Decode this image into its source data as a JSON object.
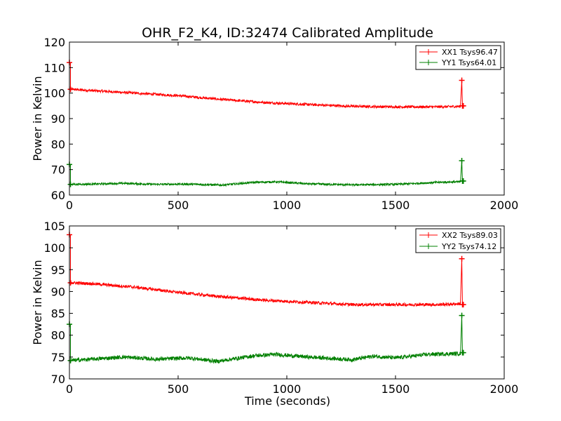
{
  "chart_data": [
    {
      "type": "line",
      "title": "OHR_F2_K4, ID:32474 Calibrated Amplitude",
      "xlabel": "",
      "ylabel": "Power in Kelvin",
      "xlim": [
        0,
        2000
      ],
      "ylim": [
        60,
        120
      ],
      "xticks": [
        0,
        500,
        1000,
        1500,
        2000
      ],
      "yticks": [
        60,
        70,
        80,
        90,
        100,
        110,
        120
      ],
      "grid": false,
      "legend": "top-right",
      "series": [
        {
          "name": "XX1 Tsys96.47",
          "color": "#ff0000",
          "noise": 0.5,
          "x": [
            0,
            5,
            6,
            100,
            300,
            500,
            700,
            900,
            1100,
            1300,
            1500,
            1700,
            1800,
            1805,
            1808,
            1812
          ],
          "y": [
            112,
            112,
            101.5,
            101,
            100,
            99,
            97.5,
            96.3,
            95.5,
            94.8,
            94.6,
            94.6,
            94.8,
            105,
            95,
            95
          ]
        },
        {
          "name": "YY1 Tsys64.01",
          "color": "#008000",
          "noise": 0.4,
          "x": [
            0,
            5,
            6,
            100,
            250,
            400,
            550,
            700,
            850,
            950,
            1100,
            1300,
            1500,
            1700,
            1800,
            1805,
            1808,
            1812
          ],
          "y": [
            72,
            72,
            64.2,
            64.3,
            64.6,
            64.2,
            64.3,
            63.9,
            65,
            65.2,
            64.4,
            64,
            64.2,
            65,
            65.2,
            73.5,
            65.5,
            65.5
          ]
        }
      ]
    },
    {
      "type": "line",
      "title": "",
      "xlabel": "Time (seconds)",
      "ylabel": "Power in Kelvin",
      "xlim": [
        0,
        2000
      ],
      "ylim": [
        70,
        105
      ],
      "xticks": [
        0,
        500,
        1000,
        1500,
        2000
      ],
      "yticks": [
        70,
        75,
        80,
        85,
        90,
        95,
        100,
        105
      ],
      "grid": false,
      "legend": "top-right",
      "series": [
        {
          "name": "XX2 Tsys89.03",
          "color": "#ff0000",
          "noise": 0.35,
          "x": [
            0,
            5,
            6,
            100,
            300,
            500,
            700,
            900,
            1100,
            1300,
            1500,
            1700,
            1800,
            1805,
            1808,
            1812
          ],
          "y": [
            103,
            103,
            92,
            91.8,
            91,
            89.8,
            88.8,
            88,
            87.5,
            87,
            87,
            87,
            87.2,
            97.5,
            87,
            87
          ]
        },
        {
          "name": "YY2 Tsys74.12",
          "color": "#008000",
          "noise": 0.45,
          "x": [
            0,
            5,
            6,
            100,
            250,
            400,
            550,
            680,
            850,
            950,
            1100,
            1300,
            1400,
            1500,
            1650,
            1800,
            1805,
            1808,
            1812
          ],
          "y": [
            82.5,
            82.5,
            74.2,
            74.5,
            75,
            74.5,
            74.8,
            74,
            75.3,
            75.6,
            75,
            74.4,
            75.2,
            74.8,
            75.6,
            75.8,
            84.5,
            76,
            76
          ]
        }
      ]
    }
  ]
}
